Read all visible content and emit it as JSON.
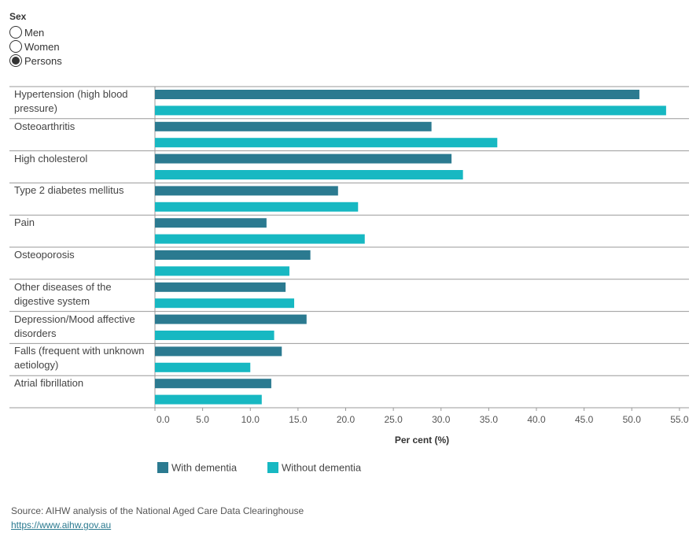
{
  "filter": {
    "label": "Sex",
    "options": [
      "Men",
      "Women",
      "Persons"
    ],
    "selected_index": 2
  },
  "chart_data": {
    "type": "hbar",
    "categories": [
      "Hypertension (high blood pressure)",
      "Osteoarthritis",
      "High cholesterol",
      "Type 2 diabetes mellitus",
      "Pain",
      "Osteoporosis",
      "Other diseases of the digestive system",
      "Depression/Mood affective disorders",
      "Falls (frequent with unknown aetiology)",
      "Atrial fibrillation"
    ],
    "series": [
      {
        "name": "With dementia",
        "color": "#2b7a90",
        "values": [
          50.8,
          29.0,
          31.1,
          19.2,
          11.7,
          16.3,
          13.7,
          15.9,
          13.3,
          12.2
        ]
      },
      {
        "name": "Without dementia",
        "color": "#17b8c2",
        "values": [
          53.6,
          35.9,
          32.3,
          21.3,
          22.0,
          14.1,
          14.6,
          12.5,
          10.0,
          11.2
        ]
      }
    ],
    "xlabel": "Per cent (%)",
    "xlim": [
      0,
      56
    ],
    "xticks": [
      {
        "value": 0,
        "label": "0.0"
      },
      {
        "value": 5,
        "label": "5.0"
      },
      {
        "value": 10,
        "label": "10.0"
      },
      {
        "value": 15,
        "label": "15.0"
      },
      {
        "value": 20,
        "label": "20.0"
      },
      {
        "value": 25,
        "label": "25.0"
      },
      {
        "value": 30,
        "label": "30.0"
      },
      {
        "value": 35,
        "label": "35.0"
      },
      {
        "value": 40,
        "label": "40.0"
      },
      {
        "value": 45,
        "label": "45.0"
      },
      {
        "value": 50,
        "label": "50.0"
      },
      {
        "value": 55,
        "label": "55.0"
      }
    ]
  },
  "source": "Source: AIHW analysis of the National Aged Care Data Clearinghouse",
  "link": "https://www.aihw.gov.au"
}
